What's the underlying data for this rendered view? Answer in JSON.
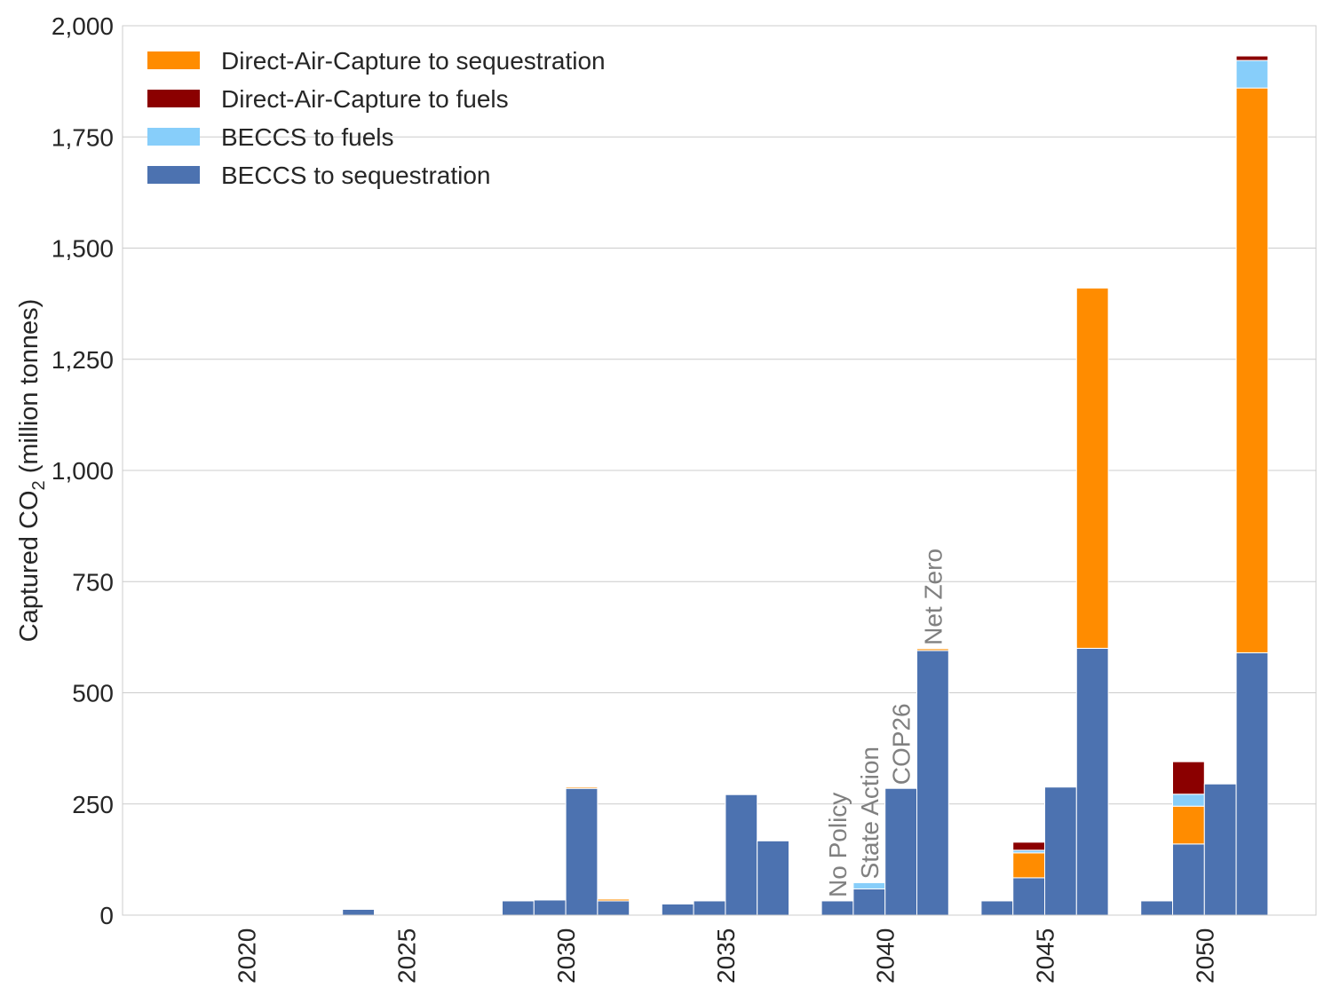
{
  "chart_data": {
    "type": "bar",
    "stacked": true,
    "grouped": true,
    "ylabel_main": "Captured CO",
    "ylabel_sub": "2",
    "ylabel_rest": " (million tonnes)",
    "ylim": [
      0,
      2000
    ],
    "yticks": [
      0,
      250,
      500,
      750,
      1000,
      1250,
      1500,
      1750,
      2000
    ],
    "ytick_labels": [
      "0",
      "250",
      "500",
      "750",
      "1,000",
      "1,250",
      "1,500",
      "1,750",
      "2,000"
    ],
    "categories": [
      "2020",
      "2025",
      "2030",
      "2035",
      "2040",
      "2045",
      "2050"
    ],
    "scenarios": [
      "No Policy",
      "State Action",
      "COP26",
      "Net Zero"
    ],
    "scenario_label_category": "2040",
    "grid": true,
    "legend_position": "top-left",
    "legend": [
      {
        "key": "dac_seq",
        "label": "Direct-Air-Capture to sequestration",
        "color": "#ff8c00"
      },
      {
        "key": "dac_fuels",
        "label": "Direct-Air-Capture to fuels",
        "color": "#8b0000"
      },
      {
        "key": "beccs_fuels",
        "label": "BECCS to fuels",
        "color": "#87cefa"
      },
      {
        "key": "beccs_seq",
        "label": "BECCS to sequestration",
        "color": "#4c72b0"
      }
    ],
    "stack_order": [
      "beccs_seq",
      "dac_seq",
      "beccs_fuels",
      "dac_fuels"
    ],
    "series": [
      {
        "key": "beccs_seq",
        "name": "BECCS to sequestration",
        "values": [
          [
            0,
            0,
            0,
            0
          ],
          [
            13,
            0,
            0,
            0
          ],
          [
            32,
            34,
            285,
            32
          ],
          [
            25,
            32,
            271,
            167
          ],
          [
            32,
            59,
            285,
            595
          ],
          [
            32,
            84,
            288,
            600
          ],
          [
            32,
            160,
            295,
            590
          ]
        ]
      },
      {
        "key": "dac_seq",
        "name": "Direct-Air-Capture to sequestration",
        "values": [
          [
            0,
            0,
            0,
            0
          ],
          [
            0,
            0,
            0,
            0
          ],
          [
            0,
            0,
            3,
            4
          ],
          [
            0,
            0,
            0,
            0
          ],
          [
            0,
            0,
            0,
            4
          ],
          [
            0,
            56,
            0,
            810
          ],
          [
            0,
            85,
            0,
            1270
          ]
        ]
      },
      {
        "key": "beccs_fuels",
        "name": "BECCS to fuels",
        "values": [
          [
            0,
            0,
            0,
            0
          ],
          [
            0,
            0,
            0,
            0
          ],
          [
            0,
            0,
            0,
            0
          ],
          [
            0,
            0,
            0,
            0
          ],
          [
            0,
            14,
            0,
            0
          ],
          [
            0,
            6,
            0,
            0
          ],
          [
            0,
            27,
            0,
            62
          ]
        ]
      },
      {
        "key": "dac_fuels",
        "name": "Direct-Air-Capture to fuels",
        "values": [
          [
            0,
            0,
            0,
            0
          ],
          [
            0,
            0,
            0,
            0
          ],
          [
            0,
            0,
            0,
            0
          ],
          [
            0,
            0,
            0,
            0
          ],
          [
            0,
            0,
            0,
            0
          ],
          [
            0,
            18,
            0,
            0
          ],
          [
            0,
            73,
            0,
            10
          ]
        ]
      }
    ]
  }
}
